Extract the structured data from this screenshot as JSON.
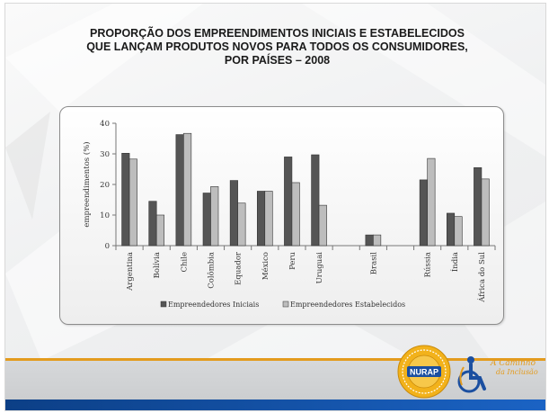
{
  "slide": {
    "title_line1": "PROPORÇÃO DOS EMPREENDIMENTOS INICIAIS E ESTABELECIDOS",
    "title_line2": "QUE LANÇAM PRODUTOS NOVOS PARA TODOS OS CONSUMIDORES,",
    "title_line3": "POR PAÍSES – 2008"
  },
  "logos": {
    "nurap_text": "NURAP",
    "inclusion_text_line1": "A Caminho",
    "inclusion_text_line2": "da Inclusão"
  },
  "colors": {
    "series_initial": "#555555",
    "series_established": "#bdbdbd",
    "accent_orange": "#e39b1e",
    "accent_blue": "#1b63c4"
  },
  "chart_data": {
    "type": "bar",
    "title": "",
    "xlabel": "",
    "ylabel": "empreendimentos (%)",
    "ylim": [
      0,
      40
    ],
    "yticks": [
      0,
      10,
      20,
      30,
      40
    ],
    "grid": false,
    "legend_position": "bottom",
    "categories": [
      "Argentina",
      "Bolívia",
      "Chile",
      "Colômbia",
      "Equador",
      "México",
      "Peru",
      "Uruguai",
      "",
      "Brasil",
      "",
      "Rússia",
      "Índia",
      "África do Sul"
    ],
    "series": [
      {
        "name": "Empreendedores Iniciais",
        "values": [
          30.2,
          14.5,
          36.3,
          17.2,
          21.3,
          17.8,
          29.0,
          29.7,
          null,
          3.5,
          null,
          21.5,
          10.6,
          25.5
        ]
      },
      {
        "name": "Empreendedores Estabelecidos",
        "values": [
          28.3,
          10.0,
          36.7,
          19.3,
          13.9,
          17.8,
          20.6,
          13.2,
          null,
          3.5,
          null,
          28.5,
          9.5,
          21.8
        ]
      }
    ]
  }
}
